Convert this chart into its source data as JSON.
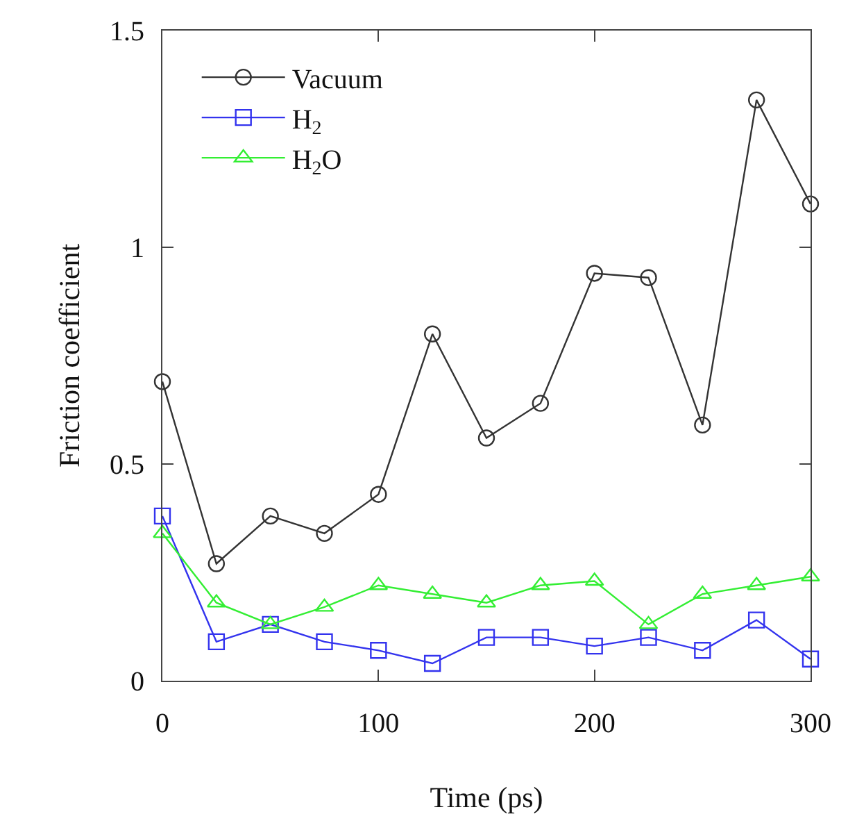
{
  "chart_data": {
    "type": "line",
    "xlabel": "Time (ps)",
    "ylabel": "Friction coefficient",
    "x": [
      0,
      25,
      50,
      75,
      100,
      125,
      150,
      175,
      200,
      225,
      250,
      275,
      300
    ],
    "series": [
      {
        "name": "Vacuum",
        "color": "#333333",
        "marker": "circle",
        "values": [
          0.69,
          0.27,
          0.38,
          0.34,
          0.43,
          0.8,
          0.56,
          0.64,
          0.94,
          0.93,
          0.59,
          1.34,
          1.1
        ]
      },
      {
        "name": "H$_{2}$",
        "color": "#3333ee",
        "marker": "square",
        "values": [
          0.38,
          0.09,
          0.13,
          0.09,
          0.07,
          0.04,
          0.1,
          0.1,
          0.08,
          0.1,
          0.07,
          0.14,
          0.05
        ]
      },
      {
        "name": "H$_{2}$O",
        "color": "#33ee33",
        "marker": "triangle",
        "values": [
          0.34,
          0.18,
          0.13,
          0.17,
          0.22,
          0.2,
          0.18,
          0.22,
          0.23,
          0.13,
          0.2,
          0.22,
          0.24
        ]
      }
    ],
    "xlim": [
      0,
      300
    ],
    "xticks": [
      0,
      100,
      200,
      300
    ],
    "ylim": [
      0,
      1.5
    ],
    "yticks": [
      0,
      {
        "value": 0.5,
        "label": "0.5"
      },
      1,
      {
        "value": 1.5,
        "label": "1.5"
      }
    ],
    "legend": "top left",
    "line_style": "solid"
  }
}
